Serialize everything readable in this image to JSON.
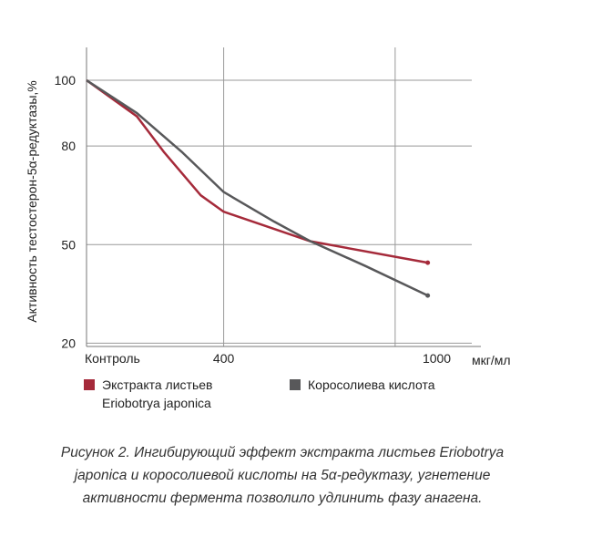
{
  "chart_data": {
    "type": "line",
    "y_label": "Активность тестостерон-5α-редуктазы,%",
    "x_label": "мкг/мл",
    "ylim": [
      19,
      110
    ],
    "yticks": [
      20,
      50,
      80,
      100
    ],
    "xlim": [
      0,
      1150
    ],
    "xticks": [
      {
        "value": 0,
        "label": "Контроль"
      },
      400,
      1000
    ],
    "xgrid": [
      400,
      900
    ],
    "series": [
      {
        "name": "Экстракта листьев Eriobotrya japonica",
        "color": "#a52a3a",
        "x": [
          0,
          147,
          227,
          333,
          400,
          653,
          995
        ],
        "values": [
          100,
          89,
          78,
          65,
          60,
          51,
          44.5
        ]
      },
      {
        "name": "Короcолиева кислота",
        "color": "#58585a",
        "x": [
          0,
          147,
          280,
          400,
          547,
          653,
          813,
          995
        ],
        "values": [
          100,
          90,
          78,
          66,
          57,
          51,
          43.5,
          34.5
        ]
      }
    ],
    "caption": "Рисунок 2. Ингибирующий эффект экстракта листьев Eriobotrya japonica и коросолиевой кислоты на 5α-редуктазу, угнетение активности фермента позволило удлинить фазу анагена."
  }
}
